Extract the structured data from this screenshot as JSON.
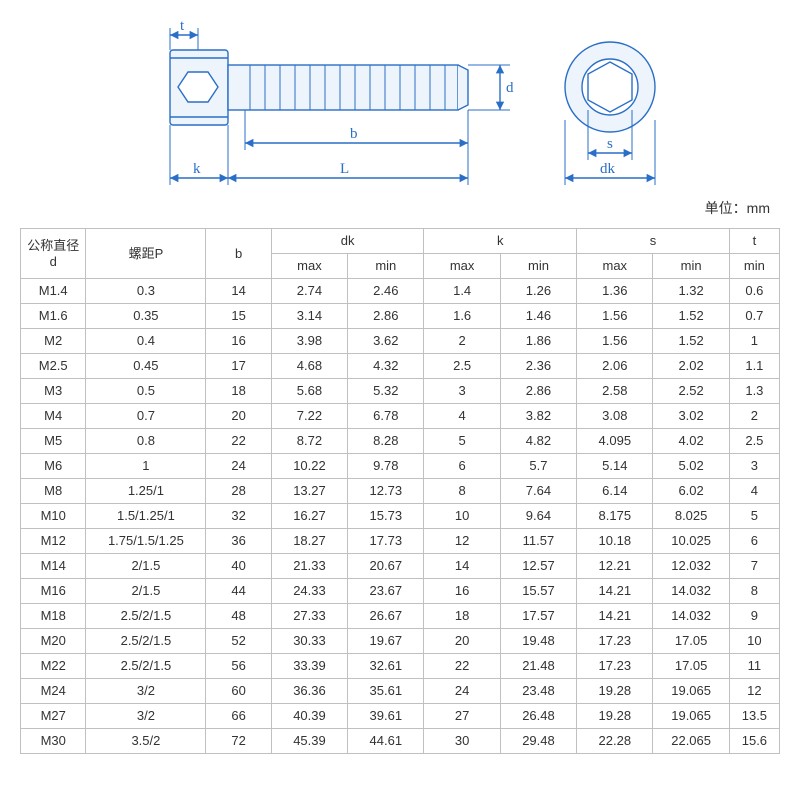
{
  "diagram": {
    "stroke": "#2a6fc7",
    "fill_light": "#eef4fc",
    "labels": {
      "t": "t",
      "k": "k",
      "L": "L",
      "b": "b",
      "d": "d",
      "s": "s",
      "dk": "dk"
    },
    "font_size": 15,
    "font_family": "Times New Roman, serif"
  },
  "unit": "单位：mm",
  "table": {
    "header": {
      "d_top": "公称直径",
      "d_bot": "d",
      "p": "螺距P",
      "b": "b",
      "dk": "dk",
      "k": "k",
      "s": "s",
      "t": "t",
      "max": "max",
      "min": "min"
    },
    "rows": [
      [
        "M1.4",
        "0.3",
        "14",
        "2.74",
        "2.46",
        "1.4",
        "1.26",
        "1.36",
        "1.32",
        "0.6"
      ],
      [
        "M1.6",
        "0.35",
        "15",
        "3.14",
        "2.86",
        "1.6",
        "1.46",
        "1.56",
        "1.52",
        "0.7"
      ],
      [
        "M2",
        "0.4",
        "16",
        "3.98",
        "3.62",
        "2",
        "1.86",
        "1.56",
        "1.52",
        "1"
      ],
      [
        "M2.5",
        "0.45",
        "17",
        "4.68",
        "4.32",
        "2.5",
        "2.36",
        "2.06",
        "2.02",
        "1.1"
      ],
      [
        "M3",
        "0.5",
        "18",
        "5.68",
        "5.32",
        "3",
        "2.86",
        "2.58",
        "2.52",
        "1.3"
      ],
      [
        "M4",
        "0.7",
        "20",
        "7.22",
        "6.78",
        "4",
        "3.82",
        "3.08",
        "3.02",
        "2"
      ],
      [
        "M5",
        "0.8",
        "22",
        "8.72",
        "8.28",
        "5",
        "4.82",
        "4.095",
        "4.02",
        "2.5"
      ],
      [
        "M6",
        "1",
        "24",
        "10.22",
        "9.78",
        "6",
        "5.7",
        "5.14",
        "5.02",
        "3"
      ],
      [
        "M8",
        "1.25/1",
        "28",
        "13.27",
        "12.73",
        "8",
        "7.64",
        "6.14",
        "6.02",
        "4"
      ],
      [
        "M10",
        "1.5/1.25/1",
        "32",
        "16.27",
        "15.73",
        "10",
        "9.64",
        "8.175",
        "8.025",
        "5"
      ],
      [
        "M12",
        "1.75/1.5/1.25",
        "36",
        "18.27",
        "17.73",
        "12",
        "11.57",
        "10.18",
        "10.025",
        "6"
      ],
      [
        "M14",
        "2/1.5",
        "40",
        "21.33",
        "20.67",
        "14",
        "12.57",
        "12.21",
        "12.032",
        "7"
      ],
      [
        "M16",
        "2/1.5",
        "44",
        "24.33",
        "23.67",
        "16",
        "15.57",
        "14.21",
        "14.032",
        "8"
      ],
      [
        "M18",
        "2.5/2/1.5",
        "48",
        "27.33",
        "26.67",
        "18",
        "17.57",
        "14.21",
        "14.032",
        "9"
      ],
      [
        "M20",
        "2.5/2/1.5",
        "52",
        "30.33",
        "19.67",
        "20",
        "19.48",
        "17.23",
        "17.05",
        "10"
      ],
      [
        "M22",
        "2.5/2/1.5",
        "56",
        "33.39",
        "32.61",
        "22",
        "21.48",
        "17.23",
        "17.05",
        "11"
      ],
      [
        "M24",
        "3/2",
        "60",
        "36.36",
        "35.61",
        "24",
        "23.48",
        "19.28",
        "19.065",
        "12"
      ],
      [
        "M27",
        "3/2",
        "66",
        "40.39",
        "39.61",
        "27",
        "26.48",
        "19.28",
        "19.065",
        "13.5"
      ],
      [
        "M30",
        "3.5/2",
        "72",
        "45.39",
        "44.61",
        "30",
        "29.48",
        "22.28",
        "22.065",
        "15.6"
      ]
    ],
    "border_color": "#c0c0c0",
    "text_color": "#333333",
    "font_size": 13
  }
}
